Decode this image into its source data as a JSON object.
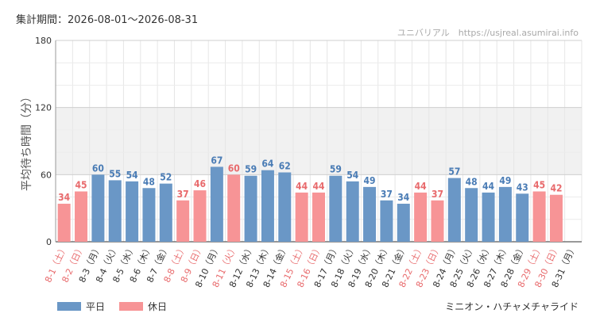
{
  "header": {
    "period_label": "集計期間：2026-08-01～2026-08-31",
    "site_label": "ユニバリアル　https://usjreal.asumirai.info"
  },
  "footer": {
    "attraction": "ミニオン・ハチャメチャライド"
  },
  "colors": {
    "weekday": "#6a97c6",
    "holiday": "#f79496",
    "weekday_text": "#4a7cb5",
    "holiday_text": "#e86a6c"
  },
  "chart_data": {
    "type": "bar",
    "ylabel": "平均待ち時間（分）",
    "ylim": [
      0,
      180
    ],
    "yticks": [
      0,
      60,
      120,
      180
    ],
    "grid": true,
    "legend_position": "bottom-left",
    "categories": [
      "8-1（土）",
      "8-2（日）",
      "8-3（月）",
      "8-4（火）",
      "8-5（水）",
      "8-6（木）",
      "8-7（金）",
      "8-8（土）",
      "8-9（日）",
      "8-10（月）",
      "8-11（火）",
      "8-12（水）",
      "8-13（木）",
      "8-14（金）",
      "8-15（土）",
      "8-16（日）",
      "8-17（月）",
      "8-18（火）",
      "8-19（水）",
      "8-20（木）",
      "8-21（金）",
      "8-22（土）",
      "8-23（日）",
      "8-24（月）",
      "8-25（火）",
      "8-26（水）",
      "8-27（木）",
      "8-28（金）",
      "8-29（土）",
      "8-30（日）",
      "8-31（月）"
    ],
    "values": [
      34,
      45,
      60,
      55,
      54,
      48,
      52,
      37,
      46,
      67,
      60,
      59,
      64,
      62,
      44,
      44,
      59,
      54,
      49,
      37,
      34,
      44,
      37,
      57,
      48,
      44,
      49,
      43,
      45,
      42,
      null
    ],
    "day_type": [
      "holiday",
      "holiday",
      "weekday",
      "weekday",
      "weekday",
      "weekday",
      "weekday",
      "holiday",
      "holiday",
      "weekday",
      "holiday",
      "weekday",
      "weekday",
      "weekday",
      "holiday",
      "holiday",
      "weekday",
      "weekday",
      "weekday",
      "weekday",
      "weekday",
      "holiday",
      "holiday",
      "weekday",
      "weekday",
      "weekday",
      "weekday",
      "weekday",
      "holiday",
      "holiday",
      "weekday"
    ],
    "series": [
      {
        "name": "平日",
        "color": "#6a97c6"
      },
      {
        "name": "休日",
        "color": "#f79496"
      }
    ]
  }
}
